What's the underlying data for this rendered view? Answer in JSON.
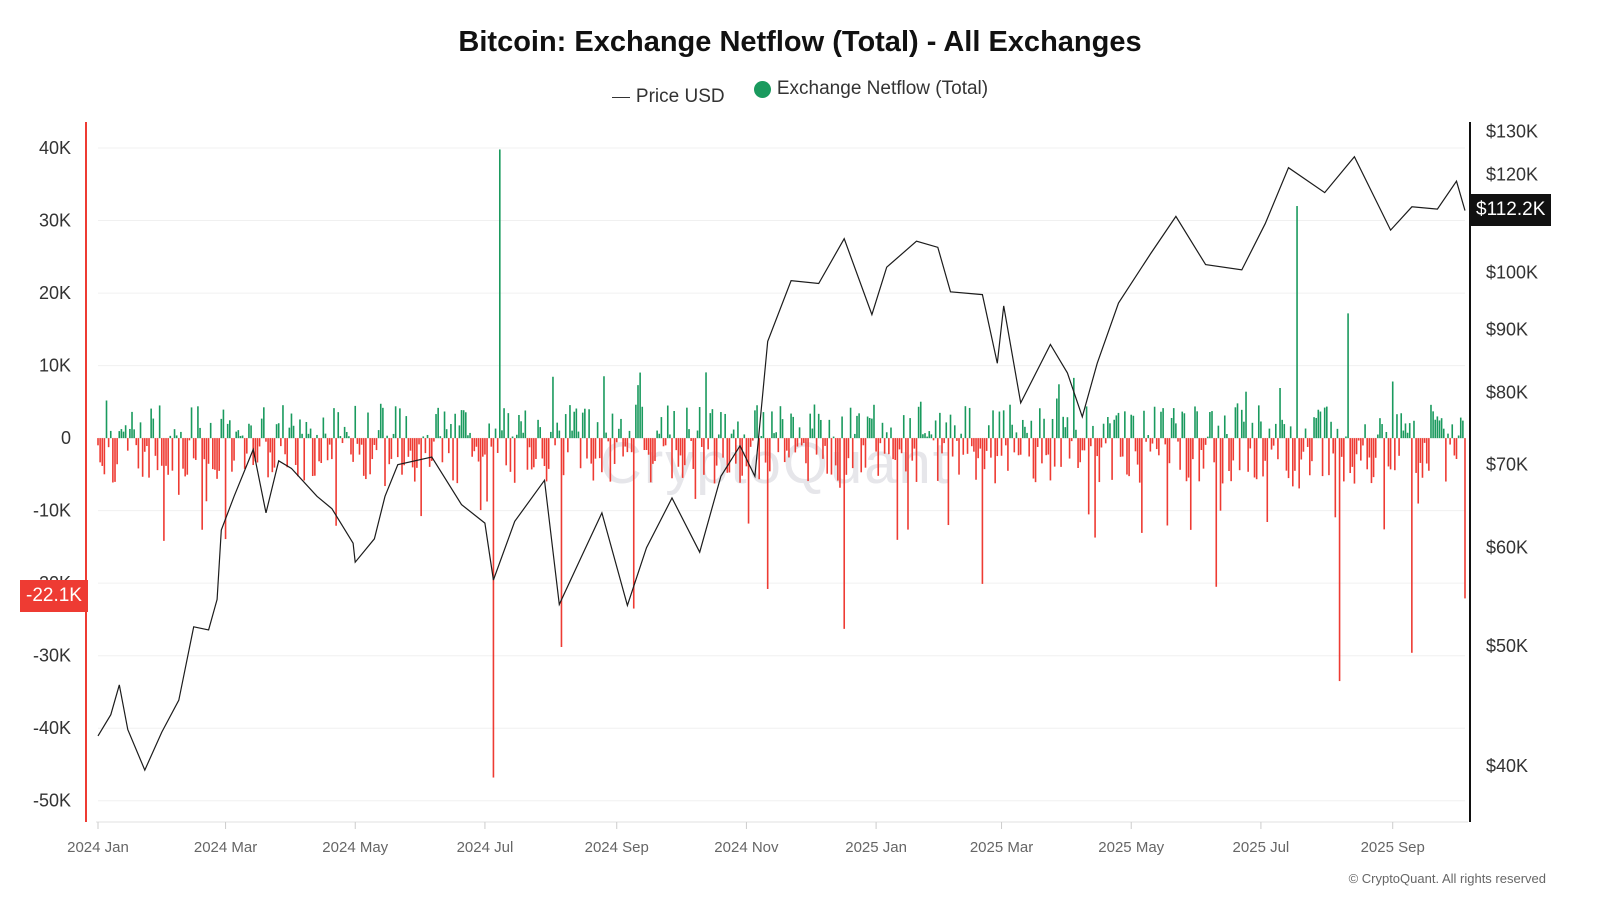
{
  "title": "Bitcoin: Exchange Netflow (Total) - All Exchanges",
  "legend": [
    {
      "label": "Price USD",
      "kind": "line",
      "color": "#333333"
    },
    {
      "label": "Exchange Netflow (Total)",
      "kind": "dot",
      "color": "#1a9a5e"
    }
  ],
  "watermark": "CryptoQuant",
  "copyright": "© CryptoQuant. All rights reserved",
  "badges": {
    "price_current": "$112.2K",
    "netflow_current": "-22.1K"
  },
  "colors": {
    "positive": "#1a9a5e",
    "negative": "#ee3b33",
    "price_line": "#1c1c1c",
    "left_axis": "#ee3b33",
    "right_axis": "#111111"
  },
  "chart_data": {
    "type": "bar+line",
    "x_start": "2024-01-01",
    "x_end": "2025-10-05",
    "x_ticks": [
      "2024 Jan",
      "2024 Mar",
      "2024 May",
      "2024 Jul",
      "2024 Sep",
      "2024 Nov",
      "2025 Jan",
      "2025 Mar",
      "2025 May",
      "2025 Jul",
      "2025 Sep"
    ],
    "x_tick_dates": [
      "2024-01-01",
      "2024-03-01",
      "2024-05-01",
      "2024-07-01",
      "2024-09-01",
      "2024-11-01",
      "2025-01-01",
      "2025-03-01",
      "2025-05-01",
      "2025-07-01",
      "2025-09-01"
    ],
    "left_axis": {
      "name": "Exchange Netflow (Total)",
      "range": [
        -51000,
        44000
      ],
      "ticks": [
        40000,
        30000,
        20000,
        10000,
        0,
        -10000,
        -20000,
        -30000,
        -40000,
        -50000
      ],
      "tick_labels": [
        "40K",
        "30K",
        "20K",
        "10K",
        "0",
        "-10K",
        "-20K",
        "-30K",
        "-40K",
        "-50K"
      ]
    },
    "right_axis": {
      "name": "Price USD",
      "scale": "log",
      "range": [
        37000,
        133000
      ],
      "ticks": [
        130000,
        120000,
        100000,
        90000,
        80000,
        70000,
        60000,
        50000,
        40000
      ],
      "tick_labels": [
        "$130K",
        "$120K",
        "$100K",
        "$90K",
        "$80K",
        "$70K",
        "$60K",
        "$50K",
        "$40K"
      ]
    },
    "price_series": {
      "name": "Price USD",
      "points": [
        [
          "2024-01-01",
          42300
        ],
        [
          "2024-01-07",
          44000
        ],
        [
          "2024-01-11",
          46500
        ],
        [
          "2024-01-15",
          42800
        ],
        [
          "2024-01-23",
          39700
        ],
        [
          "2024-01-31",
          42600
        ],
        [
          "2024-02-08",
          45200
        ],
        [
          "2024-02-15",
          51800
        ],
        [
          "2024-02-22",
          51500
        ],
        [
          "2024-02-26",
          54500
        ],
        [
          "2024-02-28",
          62000
        ],
        [
          "2024-03-05",
          66000
        ],
        [
          "2024-03-14",
          72000
        ],
        [
          "2024-03-20",
          64000
        ],
        [
          "2024-03-26",
          70500
        ],
        [
          "2024-04-01",
          69500
        ],
        [
          "2024-04-13",
          66000
        ],
        [
          "2024-04-20",
          64500
        ],
        [
          "2024-04-30",
          60500
        ],
        [
          "2024-05-01",
          58400
        ],
        [
          "2024-05-10",
          61000
        ],
        [
          "2024-05-15",
          66000
        ],
        [
          "2024-05-21",
          70000
        ],
        [
          "2024-06-06",
          71000
        ],
        [
          "2024-06-20",
          65000
        ],
        [
          "2024-07-01",
          62800
        ],
        [
          "2024-07-05",
          56500
        ],
        [
          "2024-07-15",
          63000
        ],
        [
          "2024-07-29",
          68000
        ],
        [
          "2024-08-05",
          54000
        ],
        [
          "2024-08-15",
          58800
        ],
        [
          "2024-08-25",
          64000
        ],
        [
          "2024-09-06",
          53900
        ],
        [
          "2024-09-15",
          60000
        ],
        [
          "2024-09-27",
          65800
        ],
        [
          "2024-10-10",
          59500
        ],
        [
          "2024-10-20",
          68500
        ],
        [
          "2024-10-29",
          72500
        ],
        [
          "2024-11-05",
          68500
        ],
        [
          "2024-11-11",
          88000
        ],
        [
          "2024-11-22",
          98500
        ],
        [
          "2024-12-05",
          98000
        ],
        [
          "2024-12-17",
          106500
        ],
        [
          "2024-12-30",
          92500
        ],
        [
          "2025-01-06",
          101000
        ],
        [
          "2025-01-20",
          106000
        ],
        [
          "2025-01-30",
          104800
        ],
        [
          "2025-02-05",
          96500
        ],
        [
          "2025-02-20",
          96000
        ],
        [
          "2025-02-27",
          84500
        ],
        [
          "2025-03-02",
          94000
        ],
        [
          "2025-03-10",
          78500
        ],
        [
          "2025-03-24",
          87500
        ],
        [
          "2025-04-01",
          83000
        ],
        [
          "2025-04-08",
          76500
        ],
        [
          "2025-04-15",
          84500
        ],
        [
          "2025-04-25",
          94500
        ],
        [
          "2025-05-10",
          103500
        ],
        [
          "2025-05-22",
          111000
        ],
        [
          "2025-06-05",
          101500
        ],
        [
          "2025-06-22",
          100500
        ],
        [
          "2025-07-03",
          109500
        ],
        [
          "2025-07-14",
          121500
        ],
        [
          "2025-07-31",
          116000
        ],
        [
          "2025-08-14",
          124000
        ],
        [
          "2025-08-31",
          108200
        ],
        [
          "2025-09-10",
          113000
        ],
        [
          "2025-09-22",
          112500
        ],
        [
          "2025-10-01",
          118500
        ],
        [
          "2025-10-05",
          112200
        ]
      ]
    },
    "netflow_series": {
      "name": "Exchange Netflow (Total)",
      "notable": [
        [
          "2024-07-08",
          39800
        ],
        [
          "2024-07-05",
          -46800
        ],
        [
          "2024-08-06",
          -28800
        ],
        [
          "2024-09-09",
          -23500
        ],
        [
          "2024-11-11",
          -20800
        ],
        [
          "2024-12-17",
          -26300
        ],
        [
          "2025-02-20",
          -20100
        ],
        [
          "2025-06-10",
          -20500
        ],
        [
          "2025-07-18",
          32000
        ],
        [
          "2025-08-11",
          17200
        ],
        [
          "2025-08-07",
          -33500
        ],
        [
          "2025-09-10",
          -29600
        ],
        [
          "2025-10-05",
          -22100
        ]
      ]
    }
  }
}
